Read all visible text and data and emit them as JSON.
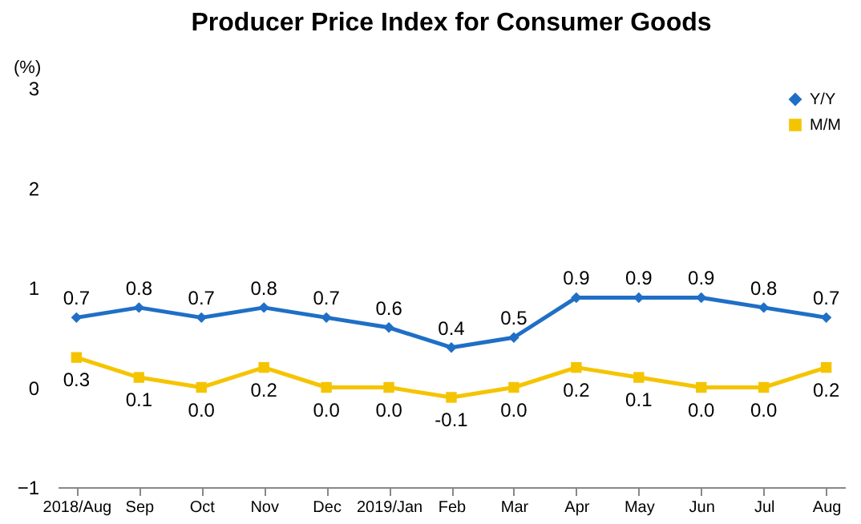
{
  "chart_data": {
    "type": "line",
    "title": "Producer Price Index for Consumer Goods",
    "ylabel": "(%)",
    "categories": [
      "2018/Aug",
      "Sep",
      "Oct",
      "Nov",
      "Dec",
      "2019/Jan",
      "Feb",
      "Mar",
      "Apr",
      "May",
      "Jun",
      "Jul",
      "Aug"
    ],
    "series": [
      {
        "name": "Y/Y",
        "color": "#1f6fc6",
        "marker": "diamond",
        "values": [
          0.7,
          0.8,
          0.7,
          0.8,
          0.7,
          0.6,
          0.4,
          0.5,
          0.9,
          0.9,
          0.9,
          0.8,
          0.7
        ],
        "value_labels": [
          "0.7",
          "0.8",
          "0.7",
          "0.8",
          "0.7",
          "0.6",
          "0.4",
          "0.5",
          "0.9",
          "0.9",
          "0.9",
          "0.8",
          "0.7"
        ]
      },
      {
        "name": "M/M",
        "color": "#f5c400",
        "marker": "square",
        "values": [
          0.3,
          0.1,
          0.0,
          0.2,
          0.0,
          0.0,
          -0.1,
          0.0,
          0.2,
          0.1,
          0.0,
          0.0,
          0.2
        ],
        "value_labels": [
          "0.3",
          "0.1",
          "0.0",
          "0.2",
          "0.0",
          "0.0",
          "-0.1",
          "0.0",
          "0.2",
          "0.1",
          "0.0",
          "0.0",
          "0.2"
        ]
      }
    ],
    "ylim": [
      -1,
      3
    ],
    "yticks": [
      -1,
      0,
      1,
      2,
      3
    ],
    "grid": false,
    "legend": "top right"
  }
}
